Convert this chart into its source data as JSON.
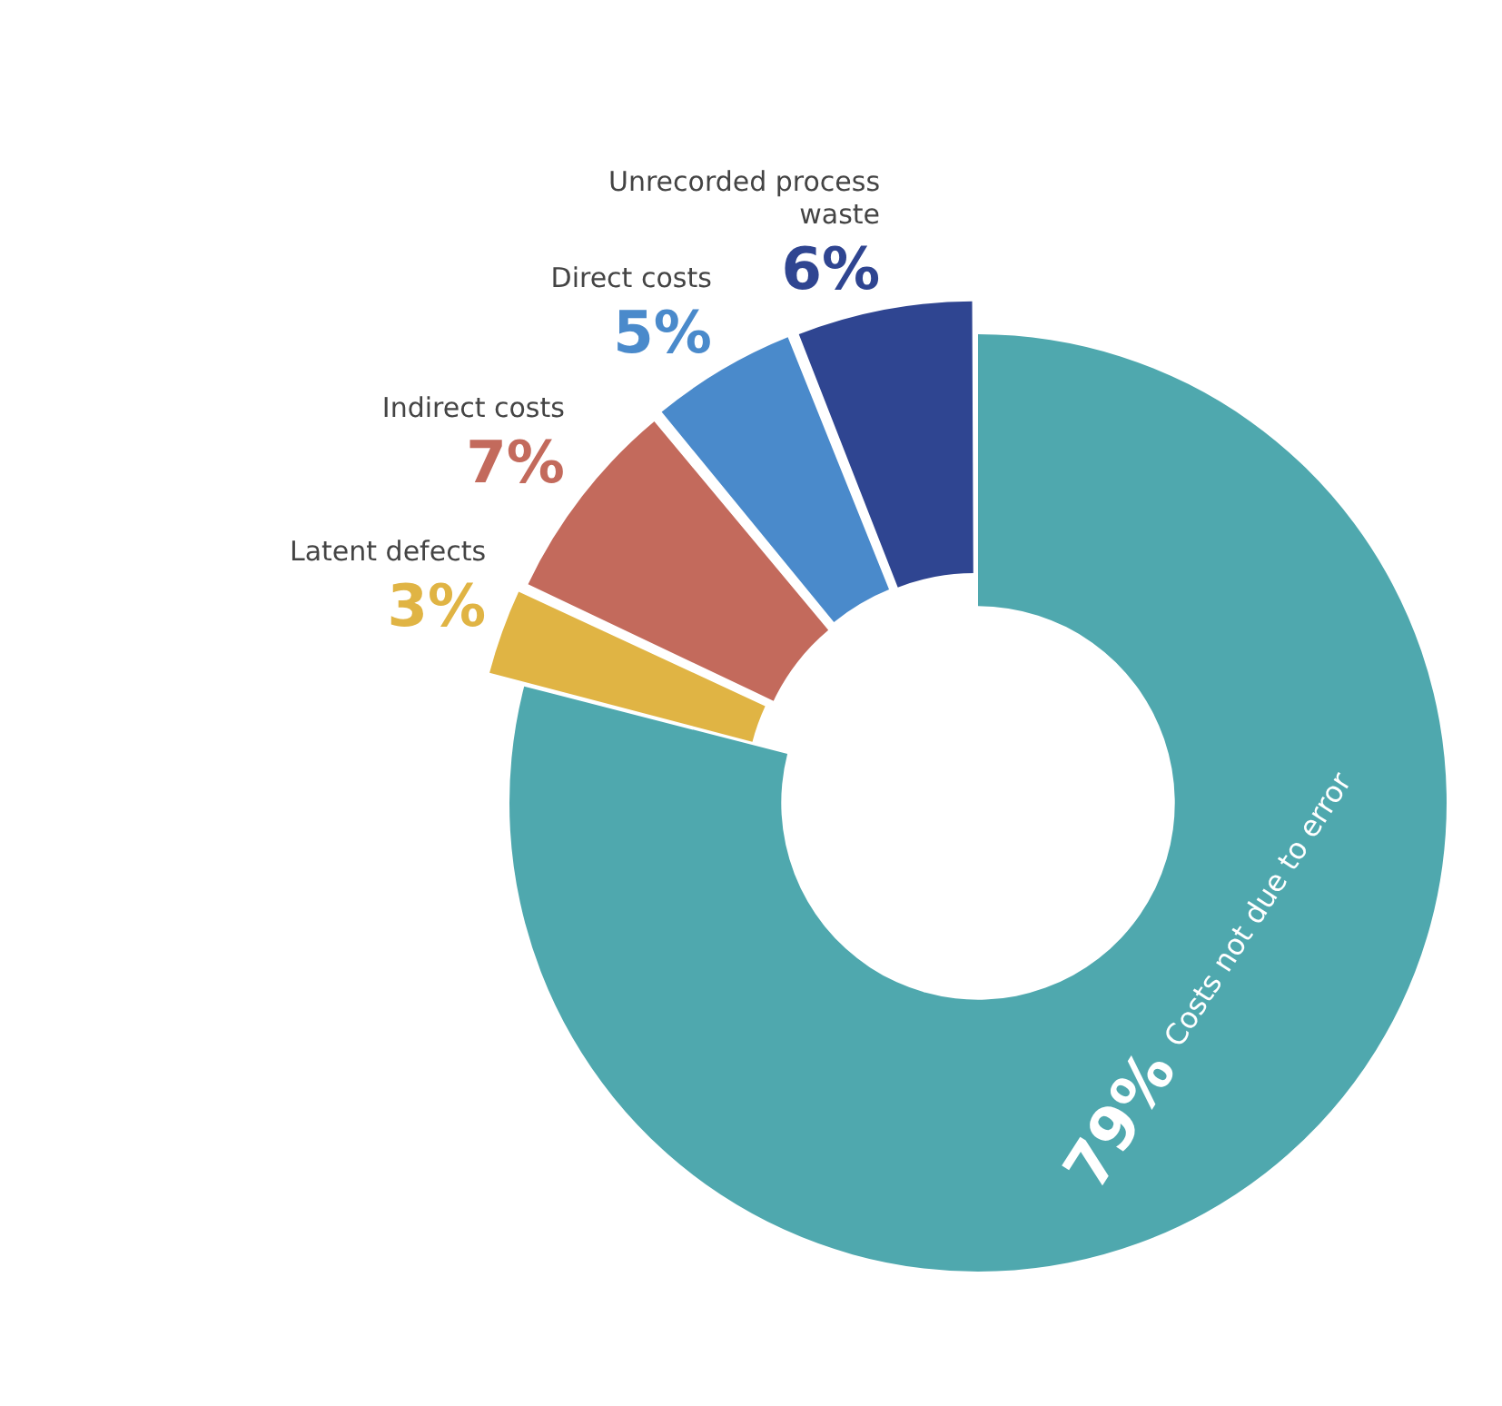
{
  "chart_data": {
    "type": "donut",
    "categories": [
      "Costs not due to error",
      "Latent defects",
      "Indirect costs",
      "Direct costs",
      "Unrecorded process waste"
    ],
    "values": [
      79,
      3,
      7,
      5,
      6
    ],
    "colors": [
      "#4fa8ae",
      "#e0b444",
      "#c36a5c",
      "#4a8acb",
      "#2f4591"
    ],
    "value_labels": [
      "79%",
      "3%",
      "7%",
      "5%",
      "6%"
    ],
    "legend": false
  }
}
